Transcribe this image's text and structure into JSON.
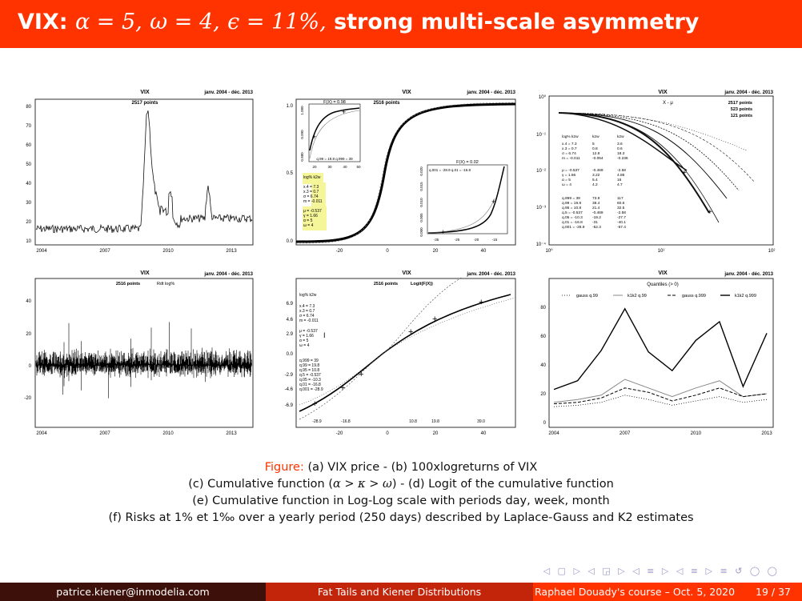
{
  "slide": {
    "title_prefix": "VIX:",
    "title_alpha": "α = 5,",
    "title_omega": "ω = 4,",
    "title_epsilon": "ϵ = 11%,",
    "title_rest": "strong multi-scale asymmetry"
  },
  "panels": {
    "a": {
      "title": "VIX",
      "period": "janv. 2004 - déc. 2013",
      "points": "2517 points",
      "y_ticks": [
        "80",
        "70",
        "60",
        "50",
        "40",
        "30",
        "20",
        "10"
      ],
      "x_ticks": [
        "2004",
        "2007",
        "2010",
        "2013"
      ]
    },
    "b": {
      "title": "VIX",
      "period": "janv. 2004 - déc. 2013",
      "points": "2516 points",
      "y_ticks": [
        "1.0",
        "0.5",
        "0.0"
      ],
      "x_ticks": [
        "-20",
        "0",
        "20",
        "40"
      ],
      "inset1_title": "F(X) = 0.98",
      "inset1_q": "q.99 = 19.8   q.999 = 39",
      "inset1_y": [
        "1.000",
        "0.990",
        "0.980"
      ],
      "inset1_x": [
        "20",
        "30",
        "40",
        "50"
      ],
      "inset2_title": "F(X) = 0.02",
      "inset2_q": "q.001 = -28.9  q.01 = -16.8",
      "inset2_y": [
        "0.020",
        "0.015",
        "0.010",
        "0.005",
        "0.000"
      ],
      "inset2_x": [
        "-35",
        "-25",
        "-20",
        "-15"
      ],
      "params": [
        "log% k2w",
        "x.4 = 7.3",
        "x.3 = 0.7",
        "σ = 6.74",
        "m = -0.011",
        "μ = -0.537",
        "γ = 1.66",
        "α = 5",
        "ω = 4"
      ]
    },
    "c": {
      "title": "VIX",
      "period": "janv. 2004 - déc. 2013",
      "subtitle": "X - μ",
      "points": [
        "2517 points",
        "523 points",
        "121 points"
      ],
      "head": [
        "log% k2w",
        "k2w",
        "k2w"
      ],
      "rows1": [
        [
          "x.4 = 7.3",
          "5",
          "3.6"
        ],
        [
          "x.3 = 0.7",
          "0.8",
          "0.6"
        ],
        [
          "σ = 6.74",
          "12.8",
          "18.3"
        ],
        [
          "m = -0.011",
          "-0.054",
          "-0.236"
        ]
      ],
      "rows2": [
        [
          "μ = -0.537",
          "-0.469",
          "-2.58"
        ],
        [
          "γ = 1.66",
          "3.22",
          "4.86"
        ],
        [
          "α = 5",
          "5.4",
          "16"
        ],
        [
          "ω = 4",
          "4.2",
          "4.7"
        ]
      ],
      "rows3": [
        [
          "q.999 = 39",
          "73.9",
          "117"
        ],
        [
          "q.99 = 19.8",
          "38.4",
          "60.6"
        ],
        [
          "q.95 = 10.8",
          "21.4",
          "32.5"
        ],
        [
          "q.5 = -0.537",
          "-0.469",
          "-2.58"
        ],
        [
          "q.05 = -10.3",
          "-19.2",
          "-27.7"
        ],
        [
          "q.01 = -16.8",
          "-31",
          "-40.1"
        ],
        [
          "q.001 = -28.9",
          "-52.3",
          "-57.4"
        ]
      ],
      "y_ticks": [
        "10⁰",
        "10⁻¹",
        "10⁻²",
        "10⁻³",
        "10⁻⁴"
      ],
      "x_ticks": [
        "10⁰",
        "10¹",
        "10²"
      ]
    },
    "d": {
      "title": "VIX",
      "period": "janv. 2004 - déc. 2013",
      "points": "2516 points",
      "legend": "Rdt log%",
      "y_ticks": [
        "40",
        "20",
        "0",
        "-20"
      ],
      "x_ticks": [
        "2004",
        "2007",
        "2010",
        "2013"
      ]
    },
    "e": {
      "title": "VIX",
      "period": "janv. 2004 - déc. 2013",
      "points": "2516 points",
      "subtitle": "Logit(F(X))",
      "y_ticks": [
        "6.9",
        "4.6",
        "2.9",
        "0.0",
        "-2.9",
        "-4.6",
        "-6.9"
      ],
      "x_ticks": [
        "-20",
        "0",
        "20",
        "40"
      ],
      "q_ticks": [
        "-28.9",
        "-16.8",
        "10.8",
        "19.8",
        "39.0"
      ],
      "params1": [
        "log% k2w",
        "x.4 = 7.3",
        "x.3 = 0.7",
        "σ = 6.74",
        "m = -0.011"
      ],
      "params2": [
        "μ = -0.537",
        "γ = 1.66",
        "α = 5",
        "ω = 4"
      ],
      "params3": [
        "q.999 = 39",
        "q.99 = 19.8",
        "q.95 = 10.8",
        "q.5 = -0.537",
        "q.05 = -10.3",
        "q.01 = -16.8",
        "q.001 = -28.9"
      ]
    },
    "f": {
      "title": "VIX",
      "period": "janv. 2004 - déc. 2013",
      "subtitle": "Quantiles (> 0)",
      "legend": [
        "gauss q.99",
        "k1k2 q.99",
        "gauss q.999",
        "k1k2 q.999"
      ],
      "y_ticks": [
        "80",
        "60",
        "40",
        "20",
        "0"
      ],
      "x_ticks": [
        "2004",
        "2007",
        "2010",
        "2013"
      ]
    }
  },
  "chart_data": [
    {
      "type": "line",
      "title": "Quantiles (> 0)",
      "categories": [
        "2004",
        "2005",
        "2006",
        "2007",
        "2008",
        "2009",
        "2010",
        "2011",
        "2012",
        "2013"
      ],
      "series": [
        {
          "name": "gauss q.99",
          "values": [
            11,
            12,
            14,
            19,
            16,
            12,
            15,
            18,
            14,
            16
          ]
        },
        {
          "name": "k1k2 q.99",
          "values": [
            14,
            16,
            19,
            30,
            24,
            18,
            24,
            29,
            18,
            20
          ]
        },
        {
          "name": "gauss q.999",
          "values": [
            13,
            14,
            17,
            24,
            21,
            15,
            19,
            24,
            18,
            20
          ]
        },
        {
          "name": "k1k2 q.999",
          "values": [
            23,
            29,
            50,
            79,
            49,
            36,
            57,
            70,
            25,
            62
          ]
        }
      ],
      "ylim": [
        0,
        90
      ]
    }
  ],
  "caption": {
    "figure_label": "Figure:",
    "line1": "(a) VIX price  -  (b) 100xlogreturns of VIX",
    "line2_a": "(c) Cumulative function (",
    "line2_math": "α > κ > ω",
    "line2_b": ")  -  (d) Logit of the cumulative function",
    "line3": "(e) Cumulative function in Log-Log scale with periods day, week, month",
    "line4": "(f) Risks at 1% et 1‰  over a yearly period (250 days) described by Laplace-Gauss and K2 estimates"
  },
  "nav": "◁ ▢ ▷ ◁ ◲ ▷ ◁ ≡ ▷ ◁ ≡ ▷ ≡ ↺ ◯ ◯",
  "footer": {
    "email": "patrice.kiener@inmodelia.com",
    "talk": "Fat Tails and Kiener Distributions",
    "course": "Raphael Douady's course – Oct. 5, 2020",
    "page": "19 / 37"
  }
}
